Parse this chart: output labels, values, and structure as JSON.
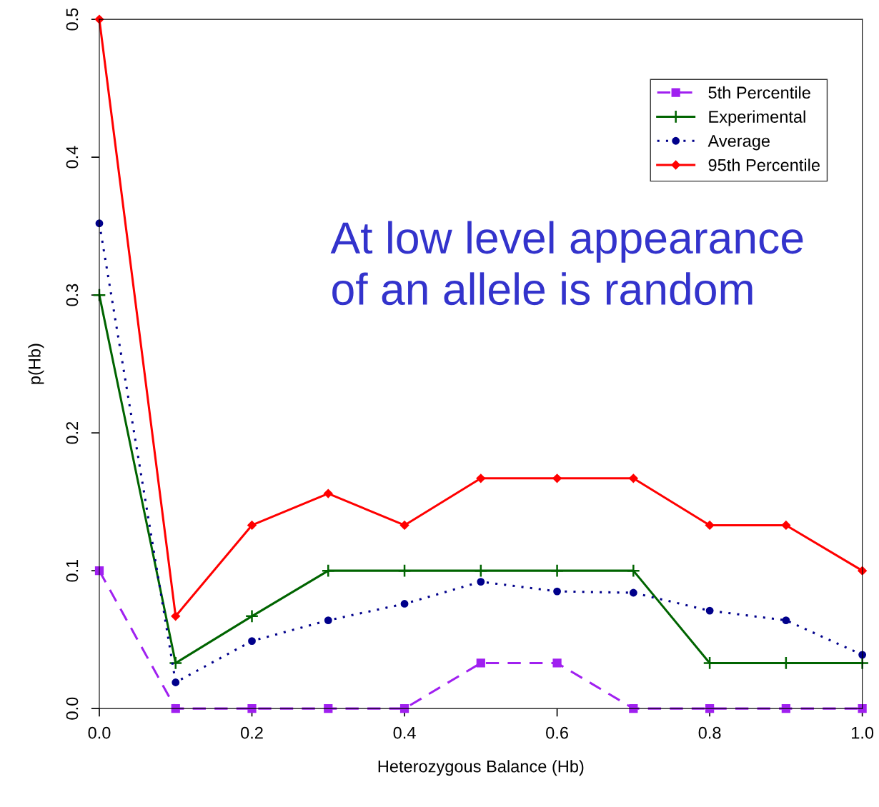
{
  "chart_data": {
    "type": "line",
    "xlabel": "Heterozygous Balance (Hb)",
    "ylabel": "p(Hb)",
    "x": [
      0.0,
      0.1,
      0.2,
      0.3,
      0.4,
      0.5,
      0.6,
      0.7,
      0.8,
      0.9,
      1.0
    ],
    "series": [
      {
        "name": "5th Percentile",
        "color": "#a020f0",
        "marker": "square",
        "line_style": "dashed",
        "values": [
          0.1,
          0,
          0,
          0,
          0,
          0.033,
          0.033,
          0,
          0,
          0,
          0
        ]
      },
      {
        "name": "Experimental",
        "color": "#006400",
        "marker": "cross",
        "line_style": "solid",
        "values": [
          0.3,
          0.033,
          0.067,
          0.1,
          0.1,
          0.1,
          0.1,
          0.1,
          0.033,
          0.033,
          0.033
        ]
      },
      {
        "name": "Average",
        "color": "#00008b",
        "marker": "circle",
        "line_style": "dotted",
        "values": [
          0.352,
          0.019,
          0.049,
          0.064,
          0.076,
          0.092,
          0.085,
          0.084,
          0.071,
          0.064,
          0.039
        ]
      },
      {
        "name": "95th Percentile",
        "color": "#ff0000",
        "marker": "diamond",
        "line_style": "solid",
        "values": [
          0.5,
          0.067,
          0.133,
          0.156,
          0.133,
          0.167,
          0.167,
          0.167,
          0.133,
          0.133,
          0.1
        ]
      }
    ],
    "xlim": [
      0,
      1
    ],
    "ylim": [
      0,
      0.5
    ],
    "xticks": [
      {
        "value": 0,
        "label": "0.0"
      },
      0.2,
      0.4,
      0.6,
      0.8,
      {
        "value": 1,
        "label": "1.0"
      }
    ],
    "yticks": [
      {
        "value": 0,
        "label": "0.0"
      },
      0.1,
      0.2,
      0.3,
      0.4,
      0.5
    ],
    "grid": false,
    "legend": "top right",
    "annotations": [
      "At low level appearance\nof an allele is random"
    ]
  }
}
